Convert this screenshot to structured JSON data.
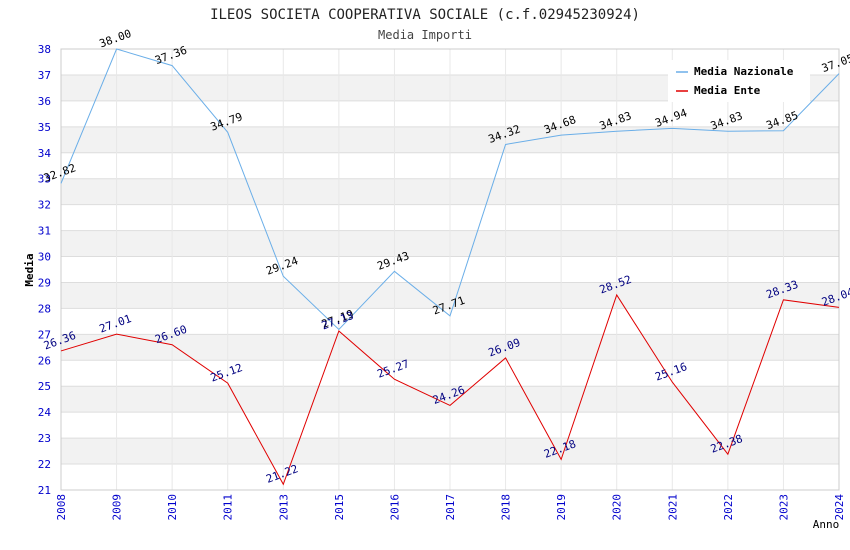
{
  "chart_data": {
    "type": "line",
    "title": "ILEOS SOCIETA COOPERATIVA SOCIALE (c.f.02945230924)",
    "subtitle": "Media Importi",
    "xlabel": "Anno",
    "ylabel": "Media",
    "ylim": [
      21,
      38
    ],
    "yticks": [
      "21",
      "22",
      "23",
      "24",
      "25",
      "26",
      "27",
      "28",
      "29",
      "30",
      "31",
      "32",
      "33",
      "34",
      "35",
      "36",
      "37",
      "38"
    ],
    "categories": [
      "2008",
      "2009",
      "2010",
      "2011",
      "2013",
      "2015",
      "2016",
      "2017",
      "2018",
      "2019",
      "2020",
      "2021",
      "2022",
      "2023",
      "2024"
    ],
    "legend_position": "top-right",
    "series": [
      {
        "name": "Media Nazionale",
        "color": "#6aaee8",
        "label_color": "#000000",
        "values": [
          32.82,
          38.0,
          37.36,
          34.79,
          29.24,
          27.19,
          29.43,
          27.71,
          34.32,
          34.68,
          34.83,
          34.94,
          34.83,
          34.85,
          37.05
        ],
        "labels": [
          "32.82",
          "38.00",
          "37.36",
          "34.79",
          "29.24",
          "27.19",
          "29.43",
          "27.71",
          "34.32",
          "34.68",
          "34.83",
          "34.94",
          "34.83",
          "34.85",
          "37.05"
        ]
      },
      {
        "name": "Media Ente",
        "color": "#e00000",
        "label_color": "#000080",
        "values": [
          26.36,
          27.01,
          26.6,
          25.12,
          21.22,
          27.13,
          25.27,
          24.26,
          26.09,
          22.18,
          28.52,
          25.16,
          22.38,
          28.33,
          28.04
        ],
        "labels": [
          "26.36",
          "27.01",
          "26.60",
          "25.12",
          "21.22",
          "27.13",
          "25.27",
          "24.26",
          "26.09",
          "22.18",
          "28.52",
          "25.16",
          "22.38",
          "28.33",
          "28.04"
        ]
      }
    ],
    "band_colors": [
      "#ffffff",
      "#f2f2f2"
    ],
    "grid_color": "#dddddd"
  }
}
